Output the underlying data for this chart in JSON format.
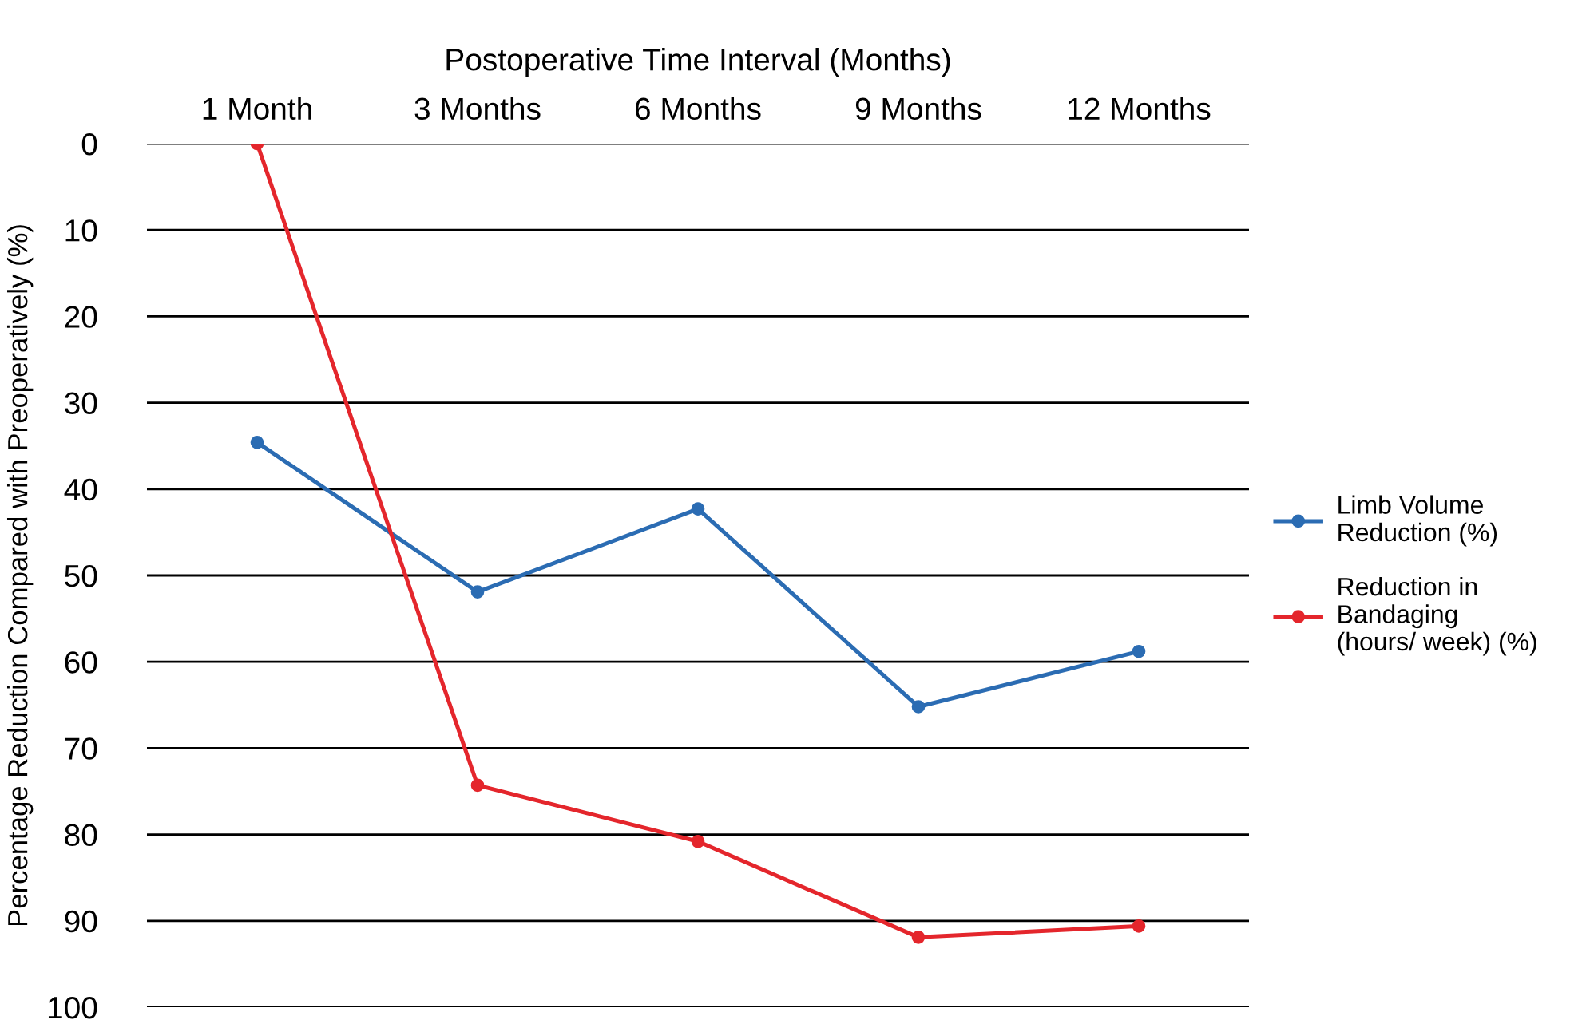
{
  "chart_data": {
    "type": "line",
    "xlabel": "Postoperative Time Interval (Months)",
    "ylabel": "Percentage Reduction Compared with Preoperatively (%)",
    "categories": [
      "1 Month",
      "3 Months",
      "6 Months",
      "9 Months",
      "12 Months"
    ],
    "series": [
      {
        "name": "Limb Volume\nReduction (%)",
        "color": "#2b6cb3",
        "values": [
          34.6,
          51.9,
          42.3,
          65.2,
          58.8
        ]
      },
      {
        "name": "Reduction in\nBandaging\n(hours/ week) (%)",
        "color": "#e4262c",
        "values": [
          0,
          74.3,
          80.8,
          91.9,
          90.6
        ]
      }
    ],
    "ylim": [
      100,
      0
    ],
    "yticks": [
      0,
      10,
      20,
      30,
      40,
      50,
      60,
      70,
      80,
      90,
      100
    ],
    "grid": "y",
    "legend": "right",
    "marker": "circle",
    "line_style": "solid"
  }
}
